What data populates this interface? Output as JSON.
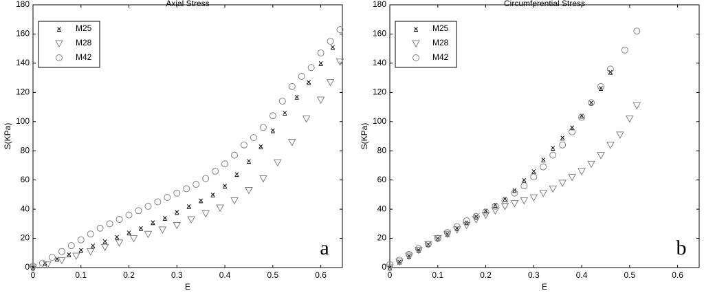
{
  "chart_data": [
    {
      "type": "scatter",
      "title": "Axial Stress",
      "xlabel": "E",
      "ylabel": "S(KPa)",
      "annotation": "a",
      "xlim": [
        0,
        0.645
      ],
      "ylim": [
        0,
        180
      ],
      "xticks": [
        0,
        0.1,
        0.2,
        0.3,
        0.4,
        0.5,
        0.6
      ],
      "yticks": [
        0,
        20,
        40,
        60,
        80,
        100,
        120,
        140,
        160,
        180
      ],
      "legend": "upper left",
      "series": [
        {
          "name": "M25",
          "color": "#000000",
          "marker": "x",
          "x": [
            0,
            0.025,
            0.05,
            0.075,
            0.1,
            0.125,
            0.15,
            0.175,
            0.2,
            0.225,
            0.25,
            0.275,
            0.3,
            0.325,
            0.35,
            0.375,
            0.4,
            0.425,
            0.45,
            0.475,
            0.5,
            0.525,
            0.55,
            0.575,
            0.6,
            0.625
          ],
          "values": [
            0,
            3,
            6,
            9,
            12,
            15,
            18,
            21,
            24,
            27,
            31,
            34,
            38,
            42,
            46,
            50,
            56,
            64,
            73,
            83,
            94,
            106,
            117,
            127,
            140,
            151
          ]
        },
        {
          "name": "M28",
          "color": "#808080",
          "marker": "triangle-down",
          "x": [
            0,
            0.03,
            0.06,
            0.09,
            0.12,
            0.15,
            0.18,
            0.21,
            0.24,
            0.27,
            0.3,
            0.33,
            0.36,
            0.39,
            0.42,
            0.45,
            0.48,
            0.51,
            0.54,
            0.57,
            0.6,
            0.62,
            0.64
          ],
          "values": [
            0,
            2,
            5,
            8,
            11,
            14,
            17,
            20,
            23,
            26,
            29,
            33,
            37,
            41,
            46,
            53,
            61,
            72,
            86,
            102,
            115,
            127,
            141
          ]
        },
        {
          "name": "M42",
          "color": "#808080",
          "marker": "circle",
          "x": [
            0,
            0.02,
            0.04,
            0.06,
            0.08,
            0.1,
            0.12,
            0.14,
            0.16,
            0.18,
            0.2,
            0.22,
            0.24,
            0.26,
            0.28,
            0.3,
            0.32,
            0.34,
            0.36,
            0.38,
            0.4,
            0.42,
            0.44,
            0.46,
            0.48,
            0.5,
            0.52,
            0.54,
            0.56,
            0.58,
            0.6,
            0.62,
            0.64
          ],
          "values": [
            1,
            3,
            7,
            11,
            15,
            19,
            23,
            27,
            30,
            33,
            36,
            39,
            42,
            45,
            48,
            51,
            54,
            57,
            61,
            66,
            71,
            77,
            84,
            89,
            96,
            104,
            114,
            124,
            131,
            137,
            147,
            155,
            163
          ]
        }
      ]
    },
    {
      "type": "scatter",
      "title": "Circumferential Stress",
      "xlabel": "E",
      "ylabel": "S(KPa)",
      "annotation": "b",
      "xlim": [
        0,
        0.645
      ],
      "ylim": [
        0,
        180
      ],
      "xticks": [
        0,
        0.1,
        0.2,
        0.3,
        0.4,
        0.5,
        0.6
      ],
      "yticks": [
        0,
        20,
        40,
        60,
        80,
        100,
        120,
        140,
        160,
        180
      ],
      "legend": "upper left",
      "series": [
        {
          "name": "M25",
          "color": "#000000",
          "marker": "x",
          "x": [
            0,
            0.02,
            0.04,
            0.06,
            0.08,
            0.1,
            0.12,
            0.14,
            0.16,
            0.18,
            0.2,
            0.22,
            0.24,
            0.26,
            0.28,
            0.3,
            0.32,
            0.34,
            0.36,
            0.38,
            0.4,
            0.42,
            0.44,
            0.46
          ],
          "values": [
            0,
            4,
            8,
            12,
            16,
            20,
            23,
            27,
            31,
            35,
            39,
            43,
            47,
            53,
            60,
            66,
            74,
            82,
            89,
            96,
            104,
            113,
            123,
            134
          ]
        },
        {
          "name": "M28",
          "color": "#808080",
          "marker": "triangle-down",
          "x": [
            0,
            0.02,
            0.04,
            0.06,
            0.08,
            0.1,
            0.12,
            0.14,
            0.16,
            0.18,
            0.2,
            0.22,
            0.24,
            0.26,
            0.28,
            0.3,
            0.32,
            0.34,
            0.36,
            0.38,
            0.4,
            0.42,
            0.44,
            0.46,
            0.48,
            0.5,
            0.515
          ],
          "values": [
            0,
            4,
            8,
            12,
            16,
            20,
            23,
            26,
            29,
            33,
            36,
            39,
            42,
            44,
            46,
            48,
            51,
            54,
            58,
            62,
            66,
            71,
            77,
            84,
            91,
            102,
            111
          ]
        },
        {
          "name": "M42",
          "color": "#808080",
          "marker": "circle",
          "x": [
            0,
            0.02,
            0.04,
            0.06,
            0.08,
            0.1,
            0.12,
            0.14,
            0.16,
            0.18,
            0.2,
            0.22,
            0.24,
            0.26,
            0.28,
            0.3,
            0.32,
            0.34,
            0.36,
            0.38,
            0.4,
            0.42,
            0.44,
            0.46,
            0.49,
            0.515
          ],
          "values": [
            2,
            5,
            9,
            13,
            16,
            20,
            24,
            28,
            32,
            35,
            38,
            42,
            46,
            51,
            56,
            62,
            69,
            77,
            84,
            93,
            103,
            113,
            124,
            136,
            149,
            162
          ]
        }
      ]
    }
  ]
}
